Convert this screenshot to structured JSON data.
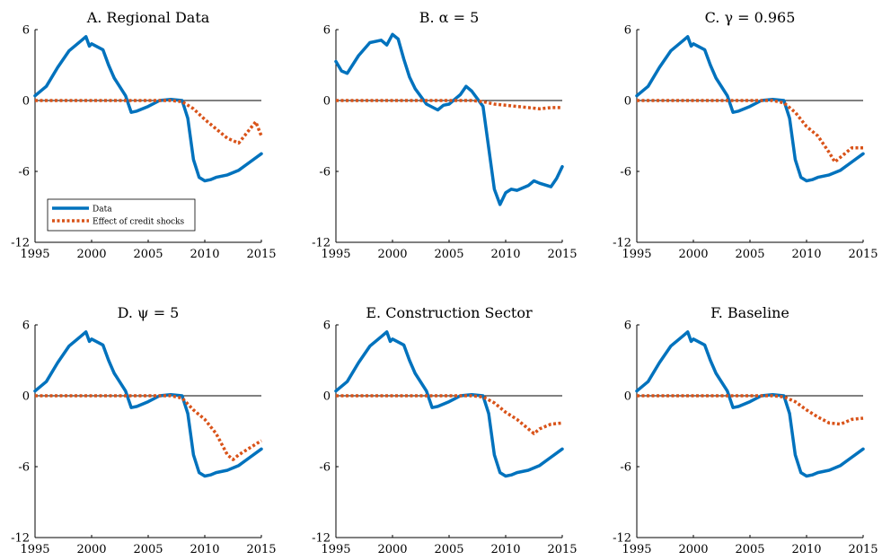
{
  "chart_data": [
    {
      "type": "line",
      "title": "A. Regional Data",
      "xlim": [
        1995,
        2015
      ],
      "ylim": [
        -12,
        6
      ],
      "xticks": [
        "1995",
        "2000",
        "2005",
        "2010",
        "2015"
      ],
      "yticks": [
        "6",
        "0",
        "-6",
        "-12"
      ],
      "legend": {
        "placement": "bottom-left",
        "entries": [
          "Data",
          "Effect of credit shocks"
        ]
      },
      "series": [
        {
          "name": "Data",
          "color": "#0072BD",
          "style": "solid",
          "x": [
            1995,
            1996,
            1997,
            1998,
            1999,
            1999.5,
            1999.8,
            2000,
            2001,
            2001.5,
            2002,
            2003,
            2003.5,
            2004,
            2005,
            2006,
            2007,
            2008,
            2008.5,
            2009,
            2009.5,
            2010,
            2010.5,
            2011,
            2012,
            2013,
            2014,
            2015
          ],
          "values": [
            0.4,
            1.2,
            2.8,
            4.2,
            5.0,
            5.4,
            4.6,
            4.8,
            4.3,
            3.0,
            1.9,
            0.4,
            -1.0,
            -0.9,
            -0.5,
            0.0,
            0.1,
            0.0,
            -1.5,
            -5.0,
            -6.5,
            -6.8,
            -6.7,
            -6.5,
            -6.3,
            -5.9,
            -5.2,
            -4.5
          ]
        },
        {
          "name": "Effect of credit shocks",
          "color": "#D95319",
          "style": "dotted",
          "x": [
            1995,
            2007,
            2008,
            2009,
            2010,
            2011,
            2012,
            2013,
            2014,
            2014.5,
            2015
          ],
          "values": [
            0.0,
            0.0,
            -0.1,
            -0.7,
            -1.6,
            -2.4,
            -3.2,
            -3.6,
            -2.4,
            -1.8,
            -3.0
          ]
        }
      ]
    },
    {
      "type": "line",
      "title": "B. α = 5",
      "xlim": [
        1995,
        2015
      ],
      "ylim": [
        -12,
        6
      ],
      "xticks": [
        "1995",
        "2000",
        "2005",
        "2010",
        "2015"
      ],
      "yticks": [
        "6",
        "0",
        "-6",
        "-12"
      ],
      "series": [
        {
          "color": "#0072BD",
          "style": "solid",
          "x": [
            1995,
            1995.5,
            1996,
            1997,
            1998,
            1999,
            1999.5,
            2000,
            2000.5,
            2001,
            2001.5,
            2002,
            2003,
            2004,
            2004.5,
            2005,
            2006,
            2006.5,
            2007,
            2008,
            2008.5,
            2009,
            2009.5,
            2010,
            2010.5,
            2011,
            2012,
            2012.5,
            2013,
            2014,
            2014.5,
            2015
          ],
          "values": [
            3.3,
            2.5,
            2.3,
            3.8,
            4.9,
            5.1,
            4.7,
            5.6,
            5.2,
            3.5,
            2.0,
            1.0,
            -0.3,
            -0.8,
            -0.4,
            -0.3,
            0.5,
            1.2,
            0.8,
            -0.5,
            -4.0,
            -7.5,
            -8.8,
            -7.8,
            -7.5,
            -7.6,
            -7.2,
            -6.8,
            -7.0,
            -7.3,
            -6.6,
            -5.6
          ]
        },
        {
          "color": "#D95319",
          "style": "dotted",
          "x": [
            1995,
            2007,
            2008,
            2009,
            2010,
            2011,
            2012,
            2013,
            2014,
            2015
          ],
          "values": [
            0.0,
            0.0,
            -0.1,
            -0.3,
            -0.4,
            -0.5,
            -0.6,
            -0.7,
            -0.6,
            -0.6
          ]
        }
      ]
    },
    {
      "type": "line",
      "title": "C. γ = 0.965",
      "xlim": [
        1995,
        2015
      ],
      "ylim": [
        -12,
        6
      ],
      "xticks": [
        "1995",
        "2000",
        "2005",
        "2010",
        "2015"
      ],
      "yticks": [
        "6",
        "0",
        "-6",
        "-12"
      ],
      "series": [
        {
          "color": "#0072BD",
          "style": "solid",
          "x": [
            1995,
            1996,
            1997,
            1998,
            1999,
            1999.5,
            1999.8,
            2000,
            2001,
            2001.5,
            2002,
            2003,
            2003.5,
            2004,
            2005,
            2006,
            2007,
            2008,
            2008.5,
            2009,
            2009.5,
            2010,
            2010.5,
            2011,
            2012,
            2013,
            2014,
            2015
          ],
          "values": [
            0.4,
            1.2,
            2.8,
            4.2,
            5.0,
            5.4,
            4.6,
            4.8,
            4.3,
            3.0,
            1.9,
            0.4,
            -1.0,
            -0.9,
            -0.5,
            0.0,
            0.1,
            0.0,
            -1.5,
            -5.0,
            -6.5,
            -6.8,
            -6.7,
            -6.5,
            -6.3,
            -5.9,
            -5.2,
            -4.5
          ]
        },
        {
          "color": "#D95319",
          "style": "dotted",
          "x": [
            1995,
            2007,
            2008,
            2009,
            2010,
            2011,
            2012,
            2012.5,
            2013,
            2014,
            2015
          ],
          "values": [
            0.0,
            0.0,
            -0.2,
            -1.0,
            -2.2,
            -3.0,
            -4.4,
            -5.2,
            -4.8,
            -4.0,
            -4.0
          ]
        }
      ]
    },
    {
      "type": "line",
      "title": "D. ψ = 5",
      "xlim": [
        1995,
        2015
      ],
      "ylim": [
        -12,
        6
      ],
      "xticks": [
        "1995",
        "2000",
        "2005",
        "2010",
        "2015"
      ],
      "yticks": [
        "6",
        "0",
        "-6",
        "-12"
      ],
      "series": [
        {
          "color": "#0072BD",
          "style": "solid",
          "x": [
            1995,
            1996,
            1997,
            1998,
            1999,
            1999.5,
            1999.8,
            2000,
            2001,
            2001.5,
            2002,
            2003,
            2003.5,
            2004,
            2005,
            2006,
            2007,
            2008,
            2008.5,
            2009,
            2009.5,
            2010,
            2010.5,
            2011,
            2012,
            2013,
            2014,
            2015
          ],
          "values": [
            0.4,
            1.2,
            2.8,
            4.2,
            5.0,
            5.4,
            4.6,
            4.8,
            4.3,
            3.0,
            1.9,
            0.4,
            -1.0,
            -0.9,
            -0.5,
            0.0,
            0.1,
            0.0,
            -1.5,
            -5.0,
            -6.5,
            -6.8,
            -6.7,
            -6.5,
            -6.3,
            -5.9,
            -5.2,
            -4.5
          ]
        },
        {
          "color": "#D95319",
          "style": "dotted",
          "x": [
            1995,
            2007,
            2008,
            2009,
            2010,
            2011,
            2012,
            2012.5,
            2013,
            2014,
            2015
          ],
          "values": [
            0.0,
            0.0,
            -0.2,
            -1.2,
            -2.0,
            -3.2,
            -5.0,
            -5.4,
            -5.0,
            -4.4,
            -3.8
          ]
        }
      ]
    },
    {
      "type": "line",
      "title": "E. Construction Sector",
      "xlim": [
        1995,
        2015
      ],
      "ylim": [
        -12,
        6
      ],
      "xticks": [
        "1995",
        "2000",
        "2005",
        "2010",
        "2015"
      ],
      "yticks": [
        "6",
        "0",
        "-6",
        "-12"
      ],
      "series": [
        {
          "color": "#0072BD",
          "style": "solid",
          "x": [
            1995,
            1996,
            1997,
            1998,
            1999,
            1999.5,
            1999.8,
            2000,
            2001,
            2001.5,
            2002,
            2003,
            2003.5,
            2004,
            2005,
            2006,
            2007,
            2008,
            2008.5,
            2009,
            2009.5,
            2010,
            2010.5,
            2011,
            2012,
            2013,
            2014,
            2015
          ],
          "values": [
            0.4,
            1.2,
            2.8,
            4.2,
            5.0,
            5.4,
            4.6,
            4.8,
            4.3,
            3.0,
            1.9,
            0.4,
            -1.0,
            -0.9,
            -0.5,
            0.0,
            0.1,
            0.0,
            -1.5,
            -5.0,
            -6.5,
            -6.8,
            -6.7,
            -6.5,
            -6.3,
            -5.9,
            -5.2,
            -4.5
          ]
        },
        {
          "color": "#D95319",
          "style": "dotted",
          "x": [
            1995,
            2007,
            2008,
            2009,
            2010,
            2011,
            2012,
            2012.5,
            2013,
            2014,
            2015
          ],
          "values": [
            0.0,
            0.0,
            -0.1,
            -0.6,
            -1.4,
            -2.0,
            -2.8,
            -3.2,
            -2.8,
            -2.4,
            -2.3
          ]
        }
      ]
    },
    {
      "type": "line",
      "title": "F. Baseline",
      "xlim": [
        1995,
        2015
      ],
      "ylim": [
        -12,
        6
      ],
      "xticks": [
        "1995",
        "2000",
        "2005",
        "2010",
        "2015"
      ],
      "yticks": [
        "6",
        "0",
        "-6",
        "-12"
      ],
      "series": [
        {
          "color": "#0072BD",
          "style": "solid",
          "x": [
            1995,
            1996,
            1997,
            1998,
            1999,
            1999.5,
            1999.8,
            2000,
            2001,
            2001.5,
            2002,
            2003,
            2003.5,
            2004,
            2005,
            2006,
            2007,
            2008,
            2008.5,
            2009,
            2009.5,
            2010,
            2010.5,
            2011,
            2012,
            2013,
            2014,
            2015
          ],
          "values": [
            0.4,
            1.2,
            2.8,
            4.2,
            5.0,
            5.4,
            4.6,
            4.8,
            4.3,
            3.0,
            1.9,
            0.4,
            -1.0,
            -0.9,
            -0.5,
            0.0,
            0.1,
            0.0,
            -1.5,
            -5.0,
            -6.5,
            -6.8,
            -6.7,
            -6.5,
            -6.3,
            -5.9,
            -5.2,
            -4.5
          ]
        },
        {
          "color": "#D95319",
          "style": "dotted",
          "x": [
            1995,
            2007,
            2008,
            2009,
            2010,
            2011,
            2012,
            2013,
            2014,
            2015
          ],
          "values": [
            0.0,
            0.0,
            -0.1,
            -0.5,
            -1.2,
            -1.8,
            -2.3,
            -2.4,
            -2.0,
            -1.9
          ]
        }
      ]
    }
  ]
}
